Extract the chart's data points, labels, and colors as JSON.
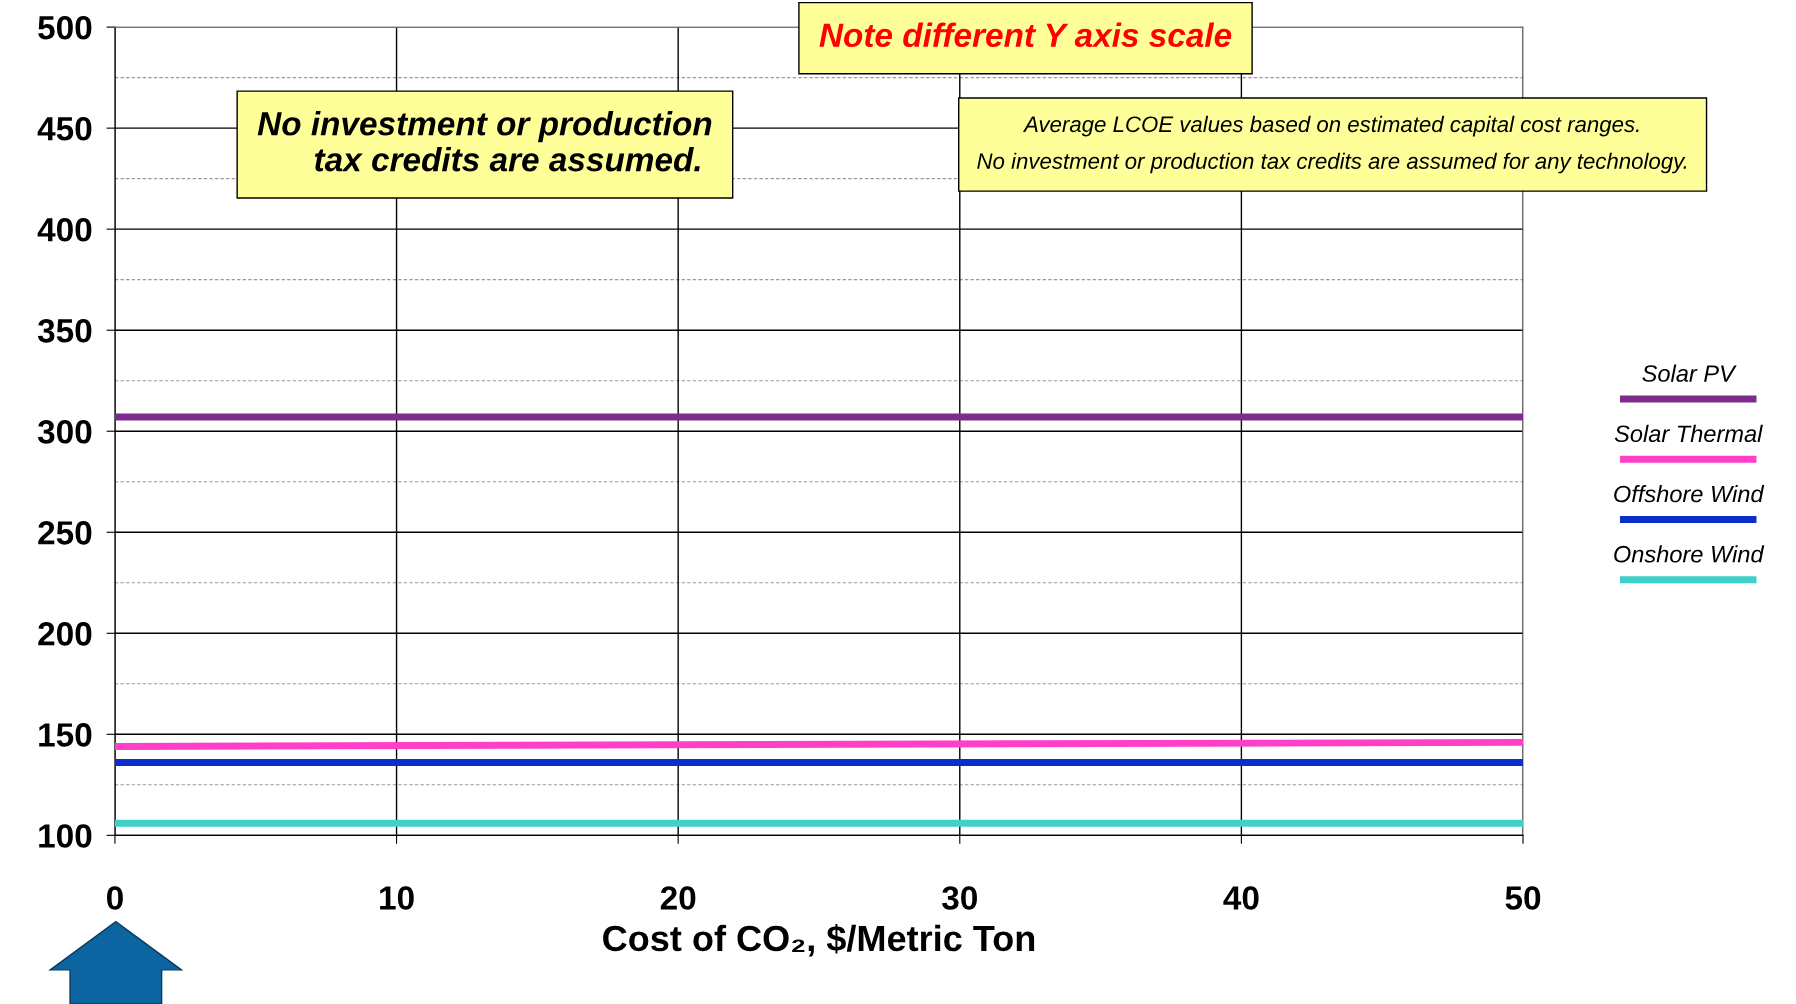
{
  "chart_data": {
    "type": "line",
    "xlabel": "Cost of CO₂, $/Metric Ton",
    "x": [
      0,
      50
    ],
    "series": [
      {
        "name": "Solar PV",
        "color": "#7b2c8c",
        "values": [
          307,
          307
        ]
      },
      {
        "name": "Solar Thermal",
        "color": "#ff3fc8",
        "values": [
          144,
          146
        ]
      },
      {
        "name": "Offshore Wind",
        "color": "#0a2fc8",
        "values": [
          136,
          136
        ]
      },
      {
        "name": "Onshore Wind",
        "color": "#40d0c8",
        "values": [
          106,
          106
        ]
      }
    ],
    "xlim": [
      0,
      50
    ],
    "xticks": [
      0,
      10,
      20,
      30,
      40,
      50
    ],
    "ylim": [
      100,
      500
    ],
    "yticks": [
      100,
      150,
      200,
      250,
      300,
      350,
      400,
      450,
      500
    ],
    "grid": true,
    "legend": "right",
    "marker": "none",
    "line_style": "solid",
    "annotations": [
      "Note different Y axis scale",
      "No investment or production\n     tax credits are assumed.",
      "Average LCOE values based on estimated capital cost ranges.\nNo investment or production tax credits are assumed for any technology."
    ]
  }
}
